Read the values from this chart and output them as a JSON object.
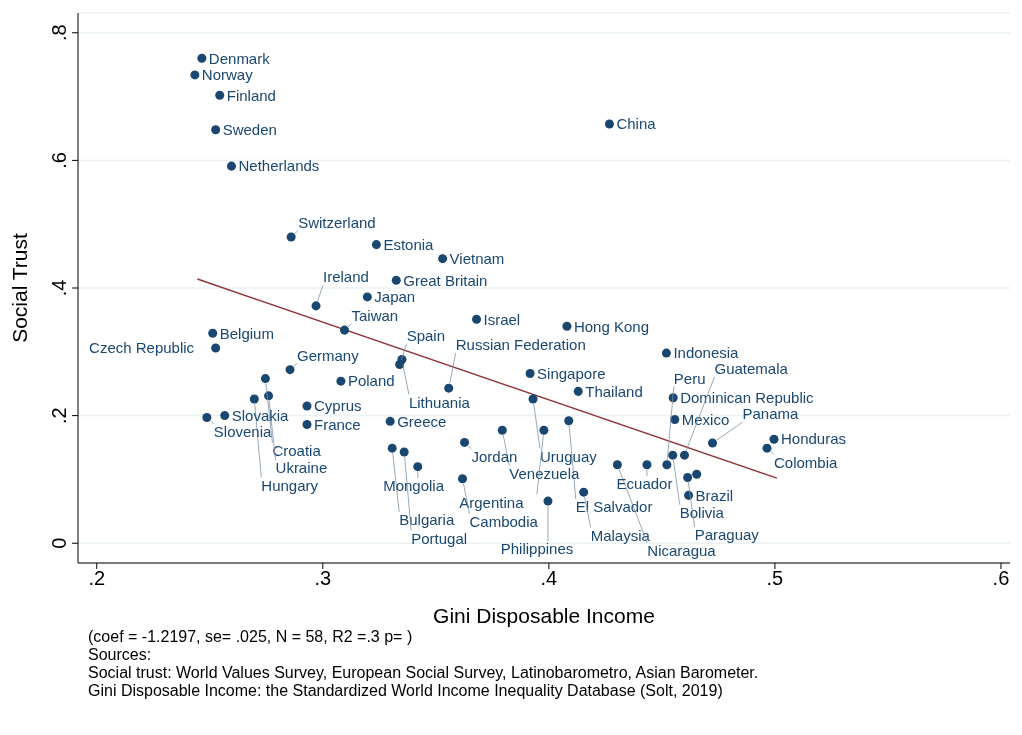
{
  "chart_data": {
    "type": "scatter",
    "xlabel": "Gini Disposable Income",
    "ylabel": "Social Trust",
    "xlim": [
      0.1917,
      0.604
    ],
    "ylim": [
      -0.031,
      0.831
    ],
    "xticks": [
      {
        "value": 0.2,
        "label": ".2"
      },
      {
        "value": 0.3,
        "label": ".3"
      },
      {
        "value": 0.4,
        "label": ".4"
      },
      {
        "value": 0.5,
        "label": ".5"
      },
      {
        "value": 0.6,
        "label": ".6"
      }
    ],
    "yticks": [
      {
        "value": 0,
        "label": "0"
      },
      {
        "value": 0.2,
        "label": ".2"
      },
      {
        "value": 0.4,
        "label": ".4"
      },
      {
        "value": 0.6,
        "label": ".6"
      },
      {
        "value": 0.8,
        "label": ".8"
      }
    ],
    "grid": "y",
    "marker": "circle",
    "series": [
      {
        "color": "#1a476f",
        "x": [
          0.2465,
          0.2434,
          0.2544,
          0.2526,
          0.2596,
          0.4268,
          0.286,
          0.3237,
          0.353,
          0.3325,
          0.3197,
          0.297,
          0.368,
          0.408,
          0.2513,
          0.3096,
          0.2526,
          0.452,
          0.335,
          0.334,
          0.2855,
          0.2746,
          0.308,
          0.3917,
          0.3557,
          0.413,
          0.393,
          0.455,
          0.276,
          0.2697,
          0.293,
          0.2566,
          0.2487,
          0.293,
          0.3298,
          0.4557,
          0.4088,
          0.3794,
          0.3978,
          0.3627,
          0.3307,
          0.336,
          0.342,
          0.3618,
          0.4154,
          0.3996,
          0.4618,
          0.4996,
          0.4724,
          0.4965,
          0.4303,
          0.4434,
          0.4548,
          0.46,
          0.4522,
          0.4614,
          0.4654
        ],
        "values": [
          0.76,
          0.734,
          0.702,
          0.648,
          0.591,
          0.657,
          0.48,
          0.468,
          0.446,
          0.412,
          0.386,
          0.372,
          0.351,
          0.34,
          0.329,
          0.334,
          0.306,
          0.298,
          0.288,
          0.28,
          0.272,
          0.258,
          0.254,
          0.266,
          0.243,
          0.238,
          0.226,
          0.228,
          0.231,
          0.226,
          0.215,
          0.2,
          0.197,
          0.186,
          0.191,
          0.194,
          0.192,
          0.177,
          0.177,
          0.158,
          0.149,
          0.143,
          0.12,
          0.101,
          0.08,
          0.066,
          0.075,
          0.163,
          0.157,
          0.149,
          0.123,
          0.123,
          0.138,
          0.138,
          0.123,
          0.103,
          0.108
        ]
      },
      {
        "type": "line",
        "marker": "none",
        "color": "#90353b",
        "x": [
          0.2445,
          0.5009
        ],
        "values": [
          0.414,
          0.102
        ]
      }
    ],
    "annotations": [
      {
        "text": "Denmark",
        "x": 0.2465,
        "y": 0.76
      },
      {
        "text": "Norway",
        "x": 0.2434,
        "y": 0.734
      },
      {
        "text": "Finland",
        "x": 0.2544,
        "y": 0.702
      },
      {
        "text": "Sweden",
        "x": 0.2526,
        "y": 0.648
      },
      {
        "text": "Netherlands",
        "x": 0.2596,
        "y": 0.591
      },
      {
        "text": "China",
        "x": 0.4268,
        "y": 0.657
      },
      {
        "text": "Switzerland",
        "x": 0.286,
        "y": 0.48
      },
      {
        "text": "Estonia",
        "x": 0.3237,
        "y": 0.468
      },
      {
        "text": "Vietnam",
        "x": 0.353,
        "y": 0.446
      },
      {
        "text": "Great Britain",
        "x": 0.3325,
        "y": 0.412
      },
      {
        "text": "Japan",
        "x": 0.3197,
        "y": 0.386
      },
      {
        "text": "Ireland",
        "x": 0.297,
        "y": 0.372
      },
      {
        "text": "Israel",
        "x": 0.368,
        "y": 0.351
      },
      {
        "text": "Hong Kong",
        "x": 0.408,
        "y": 0.34
      },
      {
        "text": "Belgium",
        "x": 0.2513,
        "y": 0.329
      },
      {
        "text": "Taiwan",
        "x": 0.3096,
        "y": 0.334
      },
      {
        "text": "Czech Republic",
        "x": 0.2526,
        "y": 0.306
      },
      {
        "text": "Indonesia",
        "x": 0.452,
        "y": 0.298
      },
      {
        "text": "Lithuania",
        "x": 0.335,
        "y": 0.288
      },
      {
        "text": "Spain",
        "x": 0.334,
        "y": 0.28
      },
      {
        "text": "Germany",
        "x": 0.2855,
        "y": 0.272
      },
      {
        "text": "Croatia",
        "x": 0.2746,
        "y": 0.258
      },
      {
        "text": "Poland",
        "x": 0.308,
        "y": 0.254
      },
      {
        "text": "Singapore",
        "x": 0.3917,
        "y": 0.266
      },
      {
        "text": "Russian Federation",
        "x": 0.3557,
        "y": 0.243
      },
      {
        "text": "Thailand",
        "x": 0.413,
        "y": 0.238
      },
      {
        "text": "Uruguay",
        "x": 0.393,
        "y": 0.226
      },
      {
        "text": "Dominican Republic",
        "x": 0.455,
        "y": 0.228
      },
      {
        "text": "Ukraine",
        "x": 0.276,
        "y": 0.231
      },
      {
        "text": "Hungary",
        "x": 0.2697,
        "y": 0.226
      },
      {
        "text": "Cyprus",
        "x": 0.293,
        "y": 0.215
      },
      {
        "text": "Slovakia",
        "x": 0.2566,
        "y": 0.2
      },
      {
        "text": "Slovenia",
        "x": 0.2487,
        "y": 0.197
      },
      {
        "text": "France",
        "x": 0.293,
        "y": 0.186
      },
      {
        "text": "Greece",
        "x": 0.3298,
        "y": 0.191
      },
      {
        "text": "Mexico",
        "x": 0.4557,
        "y": 0.194
      },
      {
        "text": "El Salvador",
        "x": 0.4088,
        "y": 0.192
      },
      {
        "text": "Venezuela",
        "x": 0.3794,
        "y": 0.177
      },
      {
        "text": "Argentina",
        "x": 0.3978,
        "y": 0.177
      },
      {
        "text": "Jordan",
        "x": 0.3627,
        "y": 0.158
      },
      {
        "text": "Bulgaria",
        "x": 0.3307,
        "y": 0.149
      },
      {
        "text": "Portugal",
        "x": 0.336,
        "y": 0.143
      },
      {
        "text": "Mongolia",
        "x": 0.342,
        "y": 0.12
      },
      {
        "text": "Cambodia",
        "x": 0.3618,
        "y": 0.101
      },
      {
        "text": "Malaysia",
        "x": 0.4154,
        "y": 0.08
      },
      {
        "text": "Philippines",
        "x": 0.3996,
        "y": 0.066
      },
      {
        "text": "Brazil",
        "x": 0.4618,
        "y": 0.075
      },
      {
        "text": "Honduras",
        "x": 0.4996,
        "y": 0.163
      },
      {
        "text": "Panama",
        "x": 0.4724,
        "y": 0.157
      },
      {
        "text": "Colombia",
        "x": 0.4965,
        "y": 0.149
      },
      {
        "text": "Nicaragua",
        "x": 0.4303,
        "y": 0.123
      },
      {
        "text": "Ecuador",
        "x": 0.4434,
        "y": 0.123
      },
      {
        "text": "Bolivia",
        "x": 0.4548,
        "y": 0.138
      },
      {
        "text": "Guatemala",
        "x": 0.46,
        "y": 0.138
      },
      {
        "text": "Peru",
        "x": 0.4522,
        "y": 0.123
      },
      {
        "text": "Paraguay",
        "x": 0.4614,
        "y": 0.103
      },
      "(coef = -1.2197, se= .025, N = 58, R2 =.3 p= )",
      "Sources:",
      "Social trust: World Values Survey, European Social Survey, Latinobarometro, Asian Barometer.",
      "Gini Disposable Income: the Standardized World Income Inequality Database (Solt, 2019)"
    ]
  }
}
